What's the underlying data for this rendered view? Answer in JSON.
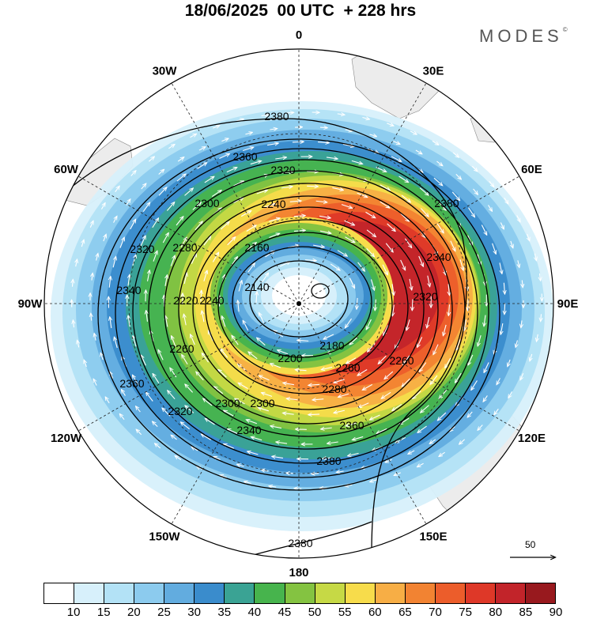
{
  "header": {
    "title": "18/06/2025  00 UTC  + 228 hrs",
    "brand": "MODES",
    "brand_mark": "©"
  },
  "map": {
    "projection": "south polar stereographic",
    "longitude_labels": [
      "0",
      "30E",
      "60E",
      "90E",
      "120E",
      "150E",
      "180",
      "150W",
      "120W",
      "90W",
      "60W",
      "30W"
    ],
    "contour_labels": [
      "2380",
      "2360",
      "2320",
      "2300",
      "2240",
      "2160",
      "2140",
      "2340",
      "2320",
      "2280",
      "2220",
      "2240",
      "2180",
      "2200",
      "2260",
      "2280",
      "2300",
      "2300",
      "2320",
      "2340",
      "2360",
      "2360",
      "2380",
      "2380",
      "2380",
      "2320",
      "2340",
      "2260",
      "2260"
    ],
    "reference_vector_label": "50",
    "colors": {
      "land": "#ececec",
      "contour": "#000000",
      "wind_arrow": "#ffffff"
    }
  },
  "colorbar": {
    "tick_labels": [
      "10",
      "15",
      "20",
      "25",
      "30",
      "35",
      "40",
      "45",
      "50",
      "55",
      "60",
      "65",
      "70",
      "75",
      "80",
      "85",
      "90"
    ],
    "colors": [
      "#ffffff",
      "#d7f0fb",
      "#b3e2f6",
      "#8ccbee",
      "#62acdf",
      "#3a8ccc",
      "#3aa394",
      "#47b44d",
      "#84c341",
      "#c6d945",
      "#f7dc4b",
      "#f7ae45",
      "#f28332",
      "#ec5d2b",
      "#de3828",
      "#c2242a",
      "#98191e"
    ]
  }
}
